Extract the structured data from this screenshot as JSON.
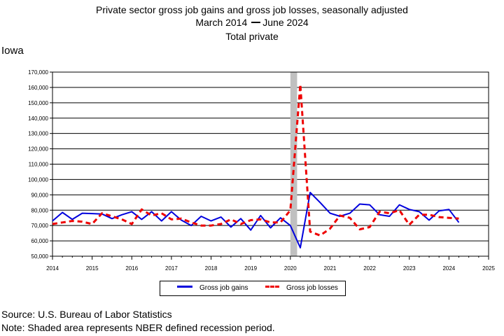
{
  "header": {
    "title": "Private sector gross job gains and gross job losses, seasonally adjusted",
    "date_start": "March 2014",
    "date_end": "June 2024",
    "series_label": "Total private",
    "region": "Iowa"
  },
  "footer": {
    "source": "Source: U.S. Bureau of Labor Statistics",
    "note": "Note: Shaded area represents NBER defined recession period."
  },
  "chart_data": {
    "type": "line",
    "title": "Private sector gross job gains and gross job losses, seasonally adjusted",
    "subtitle": "March 2014 — June 2024",
    "xlabel": "",
    "ylabel": "",
    "xlim": [
      2014,
      2025
    ],
    "ylim": [
      50000,
      170000
    ],
    "x_ticks": [
      "2014",
      "2015",
      "2016",
      "2017",
      "2018",
      "2019",
      "2020",
      "2021",
      "2022",
      "2023",
      "2024",
      "2025"
    ],
    "y_ticks": [
      "50,000",
      "60,000",
      "70,000",
      "80,000",
      "90,000",
      "100,000",
      "110,000",
      "120,000",
      "130,000",
      "140,000",
      "150,000",
      "160,000",
      "170,000"
    ],
    "grid": "horizontal",
    "legend_placement": "bottom",
    "recession_shading": [
      2020.0,
      2020.17
    ],
    "colors": {
      "gains": "#0000dd",
      "losses": "#ee0000",
      "recession": "#c0c0c0"
    },
    "x": [
      2014.0,
      2014.25,
      2014.5,
      2014.75,
      2015.0,
      2015.25,
      2015.5,
      2015.75,
      2016.0,
      2016.25,
      2016.5,
      2016.75,
      2017.0,
      2017.25,
      2017.5,
      2017.75,
      2018.0,
      2018.25,
      2018.5,
      2018.75,
      2019.0,
      2019.25,
      2019.5,
      2019.75,
      2020.0,
      2020.25,
      2020.5,
      2020.75,
      2021.0,
      2021.25,
      2021.5,
      2021.75,
      2022.0,
      2022.25,
      2022.5,
      2022.75,
      2023.0,
      2023.25,
      2023.5,
      2023.75,
      2024.0,
      2024.25
    ],
    "series": [
      {
        "name": "Gross job gains",
        "style": "solid",
        "values": [
          73000,
          78500,
          74000,
          78000,
          77800,
          77500,
          74500,
          77000,
          79000,
          74000,
          79000,
          73000,
          79000,
          73500,
          70000,
          76000,
          73000,
          75500,
          69000,
          74500,
          67000,
          76500,
          68500,
          75000,
          70000,
          55500,
          91500,
          85000,
          78000,
          76000,
          78000,
          84000,
          83500,
          77000,
          76000,
          83500,
          80500,
          79000,
          73500,
          79500,
          80500,
          72000
        ]
      },
      {
        "name": "Gross job losses",
        "style": "dashed",
        "values": [
          71000,
          72000,
          73000,
          72500,
          71000,
          78000,
          76000,
          74000,
          71000,
          80500,
          76500,
          78000,
          74000,
          74500,
          72000,
          70000,
          70000,
          71000,
          74000,
          71000,
          73500,
          74000,
          72000,
          72000,
          80000,
          162000,
          66000,
          63500,
          68000,
          76500,
          75000,
          67500,
          69000,
          79000,
          78000,
          80000,
          70500,
          77000,
          77000,
          75500,
          75000,
          74500
        ]
      }
    ]
  }
}
